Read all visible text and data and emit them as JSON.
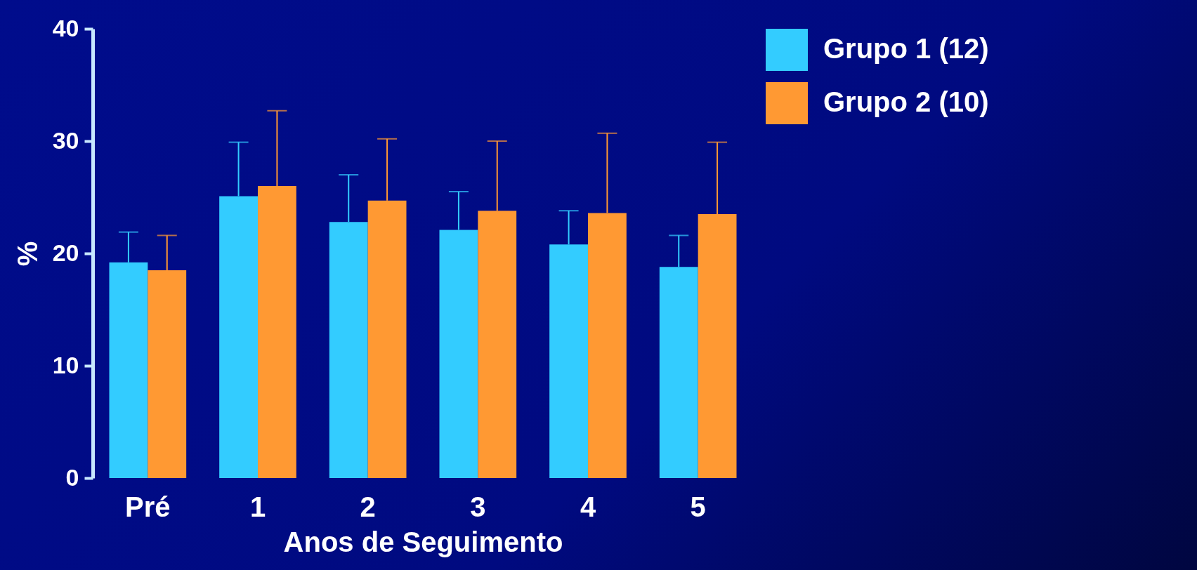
{
  "chart_data": {
    "type": "bar",
    "xlabel": "Anos de Seguimento",
    "ylabel": "%",
    "categories": [
      "Pré",
      "1",
      "2",
      "3",
      "4",
      "5"
    ],
    "series": [
      {
        "name": "Grupo 1 (12)",
        "color": "#33ccff",
        "values": [
          19.2,
          25.1,
          22.8,
          22.1,
          20.8,
          18.8
        ],
        "errors": [
          [
            19.2,
            21.9
          ],
          [
            25.1,
            29.9
          ],
          [
            22.8,
            27.0
          ],
          [
            22.1,
            25.5
          ],
          [
            20.8,
            23.8
          ],
          [
            18.8,
            21.6
          ]
        ]
      },
      {
        "name": "Grupo 2 (10)",
        "color": "#ff9933",
        "values": [
          18.5,
          26.0,
          24.7,
          23.8,
          23.6,
          23.5
        ],
        "errors": [
          [
            18.5,
            21.6
          ],
          [
            26.0,
            32.7
          ],
          [
            24.7,
            30.2
          ],
          [
            23.8,
            30.0
          ],
          [
            23.6,
            30.7
          ],
          [
            23.5,
            29.9
          ]
        ]
      }
    ],
    "ylim": [
      0,
      40
    ],
    "yticks": [
      0,
      10,
      20,
      30,
      40
    ],
    "grid": false,
    "legend": "top right"
  }
}
